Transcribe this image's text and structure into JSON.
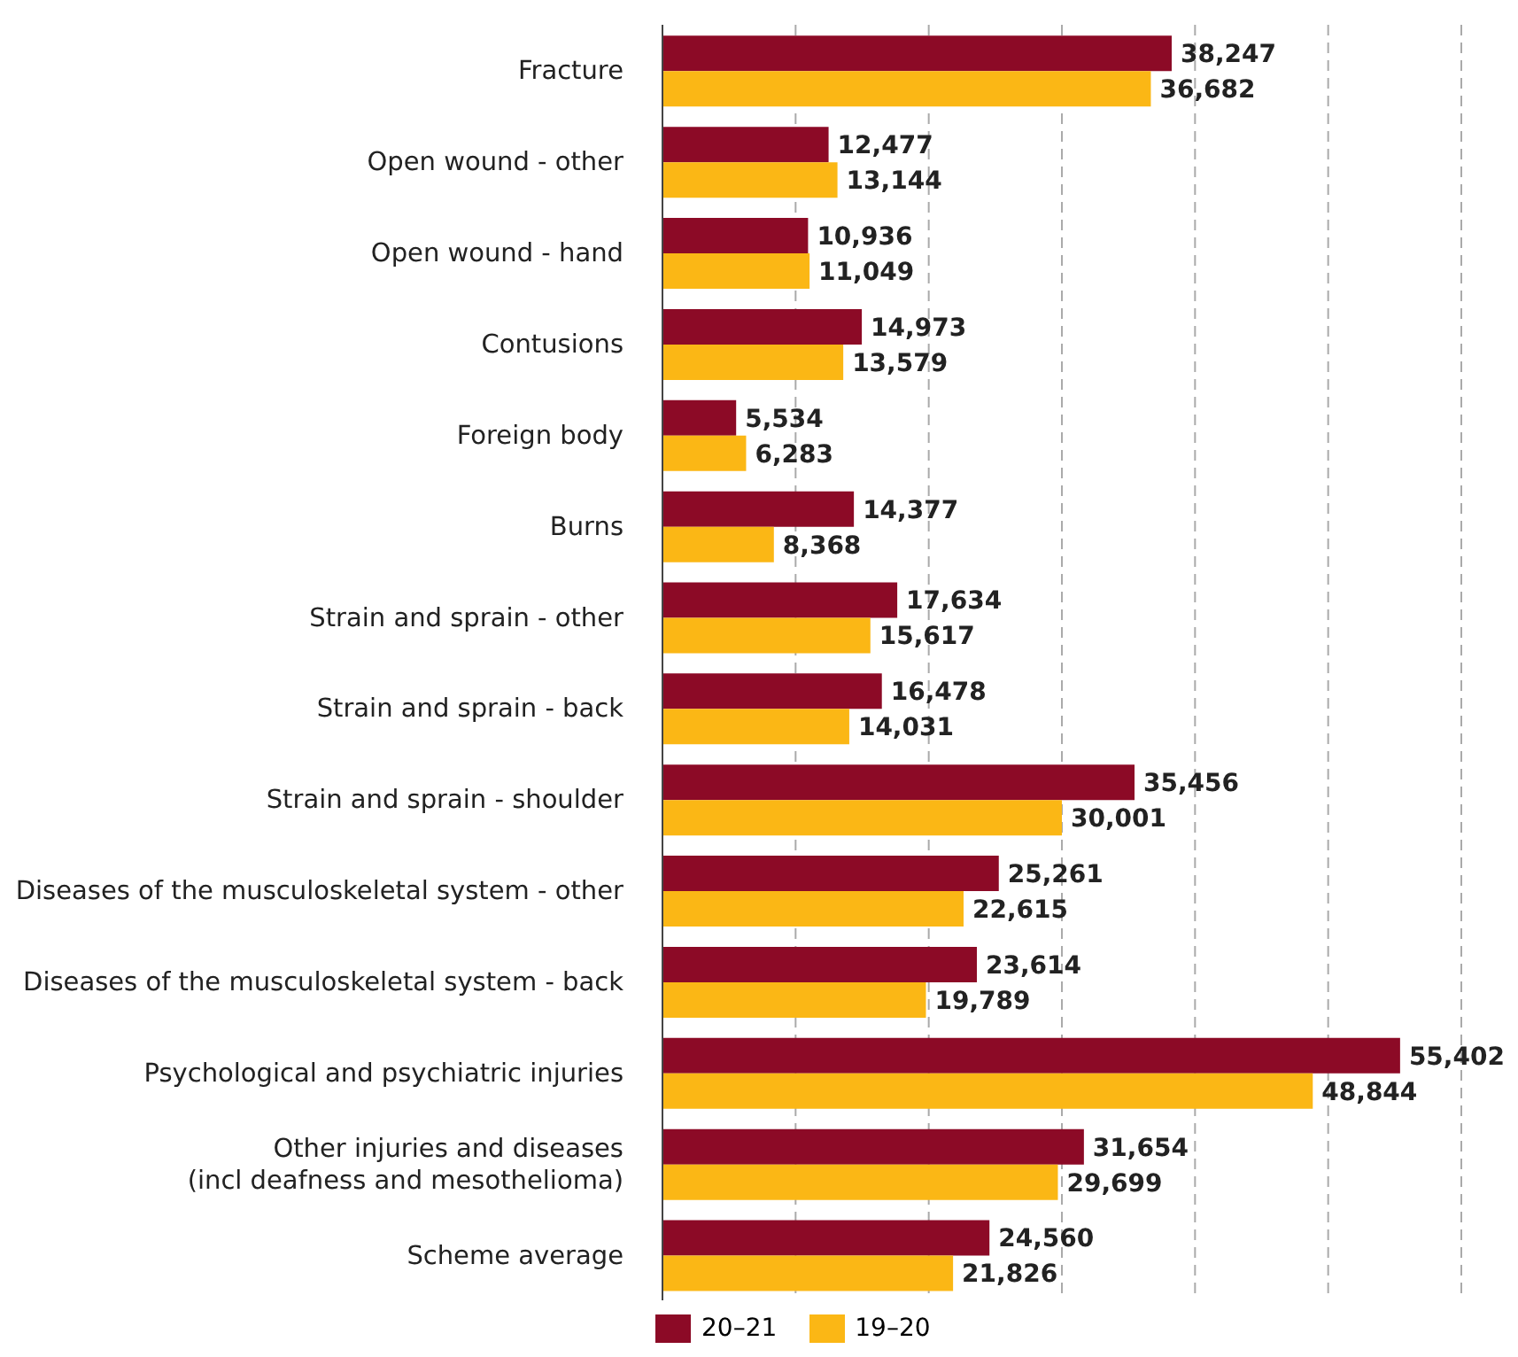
{
  "chart_data": {
    "type": "bar",
    "orientation": "horizontal",
    "categories": [
      "Fracture",
      "Open wound - other",
      "Open wound - hand",
      "Contusions",
      "Foreign body",
      "Burns",
      "Strain and sprain - other",
      "Strain and sprain - back",
      "Strain and sprain - shoulder",
      "Diseases of the musculoskeletal system - other",
      "Diseases of the musculoskeletal system - back",
      "Psychological and psychiatric injuries",
      "Other injuries and diseases\n(incl deafness and mesothelioma)",
      "Scheme average"
    ],
    "series": [
      {
        "name": "20–21",
        "color": "#8c0a26",
        "values": [
          38247,
          12477,
          10936,
          14973,
          5534,
          14377,
          17634,
          16478,
          35456,
          25261,
          23614,
          55402,
          31654,
          24560
        ],
        "value_labels": [
          "38,247",
          "12,477",
          "10,936",
          "14,973",
          "5,534",
          "14,377",
          "17,634",
          "16,478",
          "35,456",
          "25,261",
          "23,614",
          "55,402",
          "31,654",
          "24,560"
        ]
      },
      {
        "name": "19–20",
        "color": "#fbb715",
        "values": [
          36682,
          13144,
          11049,
          13579,
          6283,
          8368,
          15617,
          14031,
          30001,
          22615,
          19789,
          48844,
          29699,
          21826
        ],
        "value_labels": [
          "36,682",
          "13,144",
          "11,049",
          "13,579",
          "6,283",
          "8,368",
          "15,617",
          "14,031",
          "30,001",
          "22,615",
          "19,789",
          "48,844",
          "29,699",
          "21,826"
        ]
      }
    ],
    "xlim": [
      0,
      60000
    ],
    "xticks": [
      {
        "value": 0,
        "label": null
      },
      {
        "value": 10000,
        "label": null
      },
      {
        "value": 20000,
        "label": null
      },
      {
        "value": 30000,
        "label": null
      },
      {
        "value": 40000,
        "label": null
      },
      {
        "value": 50000,
        "label": null
      },
      {
        "value": 60000,
        "label": null
      }
    ],
    "tick_labels": "y",
    "grid": "x",
    "legend": "bottom left"
  }
}
